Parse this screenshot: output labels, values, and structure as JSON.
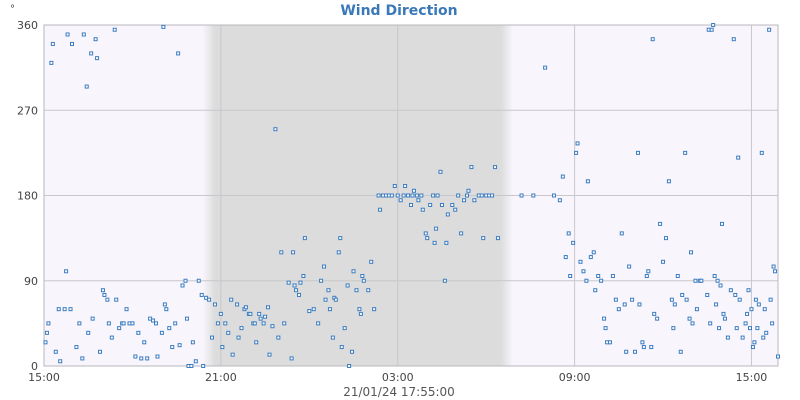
{
  "chart_data": {
    "type": "scatter",
    "title": "Wind Direction",
    "ylabel": "°",
    "footer": "21/01/24 17:55:00",
    "ylim": [
      0,
      360
    ],
    "y_ticks": [
      0,
      90,
      180,
      270,
      360
    ],
    "x_range_hours": [
      15.0,
      39.9
    ],
    "x_ticks": [
      {
        "hour": 15,
        "label": "15:00"
      },
      {
        "hour": 21,
        "label": "21:00"
      },
      {
        "hour": 27,
        "label": "03:00"
      },
      {
        "hour": 33,
        "label": "09:00"
      },
      {
        "hour": 39,
        "label": "15:00"
      }
    ],
    "grid": true,
    "night_shading": {
      "start_hour": 20.8,
      "end_hour": 30.5,
      "color": "#dcdcdc"
    },
    "point_color": "#3b7cc0",
    "points": [
      [
        15.05,
        25
      ],
      [
        15.1,
        35
      ],
      [
        15.15,
        45
      ],
      [
        15.25,
        320
      ],
      [
        15.3,
        340
      ],
      [
        15.4,
        15
      ],
      [
        15.5,
        60
      ],
      [
        15.55,
        5
      ],
      [
        15.7,
        60
      ],
      [
        15.75,
        100
      ],
      [
        15.8,
        350
      ],
      [
        15.9,
        60
      ],
      [
        15.95,
        340
      ],
      [
        16.1,
        20
      ],
      [
        16.2,
        45
      ],
      [
        16.3,
        8
      ],
      [
        16.35,
        350
      ],
      [
        16.45,
        295
      ],
      [
        16.5,
        35
      ],
      [
        16.6,
        330
      ],
      [
        16.65,
        50
      ],
      [
        16.75,
        345
      ],
      [
        16.8,
        325
      ],
      [
        16.9,
        15
      ],
      [
        17.0,
        80
      ],
      [
        17.05,
        75
      ],
      [
        17.15,
        70
      ],
      [
        17.2,
        45
      ],
      [
        17.3,
        30
      ],
      [
        17.4,
        355
      ],
      [
        17.45,
        70
      ],
      [
        17.55,
        40
      ],
      [
        17.65,
        45
      ],
      [
        17.7,
        45
      ],
      [
        17.8,
        60
      ],
      [
        17.9,
        45
      ],
      [
        18.0,
        45
      ],
      [
        18.1,
        10
      ],
      [
        18.2,
        35
      ],
      [
        18.3,
        8
      ],
      [
        18.4,
        25
      ],
      [
        18.5,
        8
      ],
      [
        18.6,
        50
      ],
      [
        18.7,
        48
      ],
      [
        18.8,
        45
      ],
      [
        18.85,
        10
      ],
      [
        19.0,
        35
      ],
      [
        19.05,
        358
      ],
      [
        19.1,
        65
      ],
      [
        19.15,
        60
      ],
      [
        19.25,
        40
      ],
      [
        19.35,
        20
      ],
      [
        19.45,
        45
      ],
      [
        19.55,
        330
      ],
      [
        19.6,
        22
      ],
      [
        19.7,
        85
      ],
      [
        19.8,
        90
      ],
      [
        19.85,
        50
      ],
      [
        19.9,
        0
      ],
      [
        20.0,
        0
      ],
      [
        20.05,
        25
      ],
      [
        20.15,
        5
      ],
      [
        20.25,
        90
      ],
      [
        20.35,
        75
      ],
      [
        20.4,
        0
      ],
      [
        20.5,
        72
      ],
      [
        20.6,
        70
      ],
      [
        20.7,
        30
      ],
      [
        20.8,
        65
      ],
      [
        20.9,
        45
      ],
      [
        21.0,
        55
      ],
      [
        21.05,
        20
      ],
      [
        21.15,
        45
      ],
      [
        21.25,
        35
      ],
      [
        21.35,
        70
      ],
      [
        21.4,
        12
      ],
      [
        21.55,
        65
      ],
      [
        21.6,
        30
      ],
      [
        21.7,
        40
      ],
      [
        21.8,
        60
      ],
      [
        21.85,
        62
      ],
      [
        21.95,
        55
      ],
      [
        22.0,
        55
      ],
      [
        22.1,
        45
      ],
      [
        22.15,
        45
      ],
      [
        22.2,
        25
      ],
      [
        22.3,
        55
      ],
      [
        22.35,
        50
      ],
      [
        22.45,
        45
      ],
      [
        22.5,
        52
      ],
      [
        22.6,
        62
      ],
      [
        22.65,
        12
      ],
      [
        22.75,
        42
      ],
      [
        22.85,
        250
      ],
      [
        22.95,
        30
      ],
      [
        23.05,
        120
      ],
      [
        23.15,
        45
      ],
      [
        23.3,
        88
      ],
      [
        23.4,
        8
      ],
      [
        23.45,
        120
      ],
      [
        23.5,
        85
      ],
      [
        23.55,
        80
      ],
      [
        23.65,
        75
      ],
      [
        23.7,
        88
      ],
      [
        23.8,
        95
      ],
      [
        23.85,
        135
      ],
      [
        24.0,
        58
      ],
      [
        24.15,
        60
      ],
      [
        24.3,
        45
      ],
      [
        24.4,
        90
      ],
      [
        24.5,
        105
      ],
      [
        24.55,
        70
      ],
      [
        24.65,
        80
      ],
      [
        24.7,
        60
      ],
      [
        24.8,
        30
      ],
      [
        24.85,
        72
      ],
      [
        24.9,
        70
      ],
      [
        25.0,
        120
      ],
      [
        25.05,
        135
      ],
      [
        25.1,
        20
      ],
      [
        25.2,
        40
      ],
      [
        25.3,
        85
      ],
      [
        25.35,
        0
      ],
      [
        25.45,
        15
      ],
      [
        25.5,
        100
      ],
      [
        25.6,
        80
      ],
      [
        25.7,
        60
      ],
      [
        25.75,
        55
      ],
      [
        25.8,
        95
      ],
      [
        25.85,
        90
      ],
      [
        26.0,
        80
      ],
      [
        26.1,
        110
      ],
      [
        26.2,
        60
      ],
      [
        26.35,
        180
      ],
      [
        26.4,
        165
      ],
      [
        26.5,
        180
      ],
      [
        26.6,
        180
      ],
      [
        26.7,
        180
      ],
      [
        26.8,
        180
      ],
      [
        26.9,
        190
      ],
      [
        27.0,
        180
      ],
      [
        27.1,
        175
      ],
      [
        27.2,
        180
      ],
      [
        27.25,
        190
      ],
      [
        27.35,
        180
      ],
      [
        27.45,
        170
      ],
      [
        27.5,
        180
      ],
      [
        27.55,
        185
      ],
      [
        27.65,
        180
      ],
      [
        27.7,
        175
      ],
      [
        27.8,
        180
      ],
      [
        27.85,
        165
      ],
      [
        27.95,
        140
      ],
      [
        28.0,
        135
      ],
      [
        28.1,
        170
      ],
      [
        28.2,
        180
      ],
      [
        28.25,
        130
      ],
      [
        28.3,
        145
      ],
      [
        28.35,
        180
      ],
      [
        28.45,
        205
      ],
      [
        28.5,
        170
      ],
      [
        28.6,
        90
      ],
      [
        28.65,
        130
      ],
      [
        28.7,
        160
      ],
      [
        28.85,
        170
      ],
      [
        28.95,
        165
      ],
      [
        29.05,
        180
      ],
      [
        29.15,
        140
      ],
      [
        29.25,
        175
      ],
      [
        29.35,
        180
      ],
      [
        29.4,
        185
      ],
      [
        29.5,
        210
      ],
      [
        29.6,
        175
      ],
      [
        29.75,
        180
      ],
      [
        29.85,
        180
      ],
      [
        29.9,
        135
      ],
      [
        30.0,
        180
      ],
      [
        30.1,
        180
      ],
      [
        30.2,
        180
      ],
      [
        30.3,
        210
      ],
      [
        30.4,
        135
      ],
      [
        31.2,
        180
      ],
      [
        31.6,
        180
      ],
      [
        32.0,
        315
      ],
      [
        32.3,
        180
      ],
      [
        32.5,
        175
      ],
      [
        32.6,
        200
      ],
      [
        32.7,
        115
      ],
      [
        32.8,
        140
      ],
      [
        32.85,
        95
      ],
      [
        32.95,
        130
      ],
      [
        33.05,
        225
      ],
      [
        33.1,
        235
      ],
      [
        33.2,
        110
      ],
      [
        33.3,
        100
      ],
      [
        33.4,
        90
      ],
      [
        33.45,
        195
      ],
      [
        33.55,
        115
      ],
      [
        33.65,
        120
      ],
      [
        33.7,
        80
      ],
      [
        33.8,
        95
      ],
      [
        33.9,
        90
      ],
      [
        34.0,
        50
      ],
      [
        34.05,
        40
      ],
      [
        34.1,
        25
      ],
      [
        34.2,
        25
      ],
      [
        34.3,
        95
      ],
      [
        34.4,
        70
      ],
      [
        34.5,
        60
      ],
      [
        34.6,
        140
      ],
      [
        34.7,
        65
      ],
      [
        34.75,
        15
      ],
      [
        34.85,
        105
      ],
      [
        34.95,
        70
      ],
      [
        35.05,
        15
      ],
      [
        35.15,
        225
      ],
      [
        35.2,
        65
      ],
      [
        35.3,
        25
      ],
      [
        35.35,
        20
      ],
      [
        35.45,
        95
      ],
      [
        35.5,
        100
      ],
      [
        35.6,
        20
      ],
      [
        35.65,
        345
      ],
      [
        35.7,
        55
      ],
      [
        35.8,
        50
      ],
      [
        35.9,
        150
      ],
      [
        36.0,
        110
      ],
      [
        36.1,
        135
      ],
      [
        36.2,
        195
      ],
      [
        36.3,
        70
      ],
      [
        36.35,
        40
      ],
      [
        36.4,
        65
      ],
      [
        36.5,
        95
      ],
      [
        36.6,
        15
      ],
      [
        36.65,
        75
      ],
      [
        36.75,
        225
      ],
      [
        36.8,
        70
      ],
      [
        36.9,
        50
      ],
      [
        36.95,
        120
      ],
      [
        37.0,
        45
      ],
      [
        37.1,
        90
      ],
      [
        37.15,
        60
      ],
      [
        37.25,
        90
      ],
      [
        37.3,
        90
      ],
      [
        37.5,
        75
      ],
      [
        37.55,
        355
      ],
      [
        37.6,
        45
      ],
      [
        37.65,
        355
      ],
      [
        37.7,
        360
      ],
      [
        37.75,
        95
      ],
      [
        37.8,
        65
      ],
      [
        37.85,
        90
      ],
      [
        37.9,
        40
      ],
      [
        37.95,
        85
      ],
      [
        38.0,
        150
      ],
      [
        38.05,
        55
      ],
      [
        38.1,
        50
      ],
      [
        38.2,
        30
      ],
      [
        38.3,
        80
      ],
      [
        38.4,
        345
      ],
      [
        38.45,
        75
      ],
      [
        38.5,
        40
      ],
      [
        38.55,
        220
      ],
      [
        38.6,
        70
      ],
      [
        38.7,
        30
      ],
      [
        38.8,
        45
      ],
      [
        38.85,
        55
      ],
      [
        38.9,
        80
      ],
      [
        38.95,
        40
      ],
      [
        39.0,
        60
      ],
      [
        39.05,
        20
      ],
      [
        39.1,
        25
      ],
      [
        39.15,
        70
      ],
      [
        39.2,
        40
      ],
      [
        39.25,
        65
      ],
      [
        39.35,
        225
      ],
      [
        39.4,
        30
      ],
      [
        39.45,
        60
      ],
      [
        39.5,
        35
      ],
      [
        39.6,
        355
      ],
      [
        39.65,
        70
      ],
      [
        39.7,
        45
      ],
      [
        39.75,
        105
      ],
      [
        39.8,
        100
      ],
      [
        39.9,
        10
      ]
    ]
  }
}
